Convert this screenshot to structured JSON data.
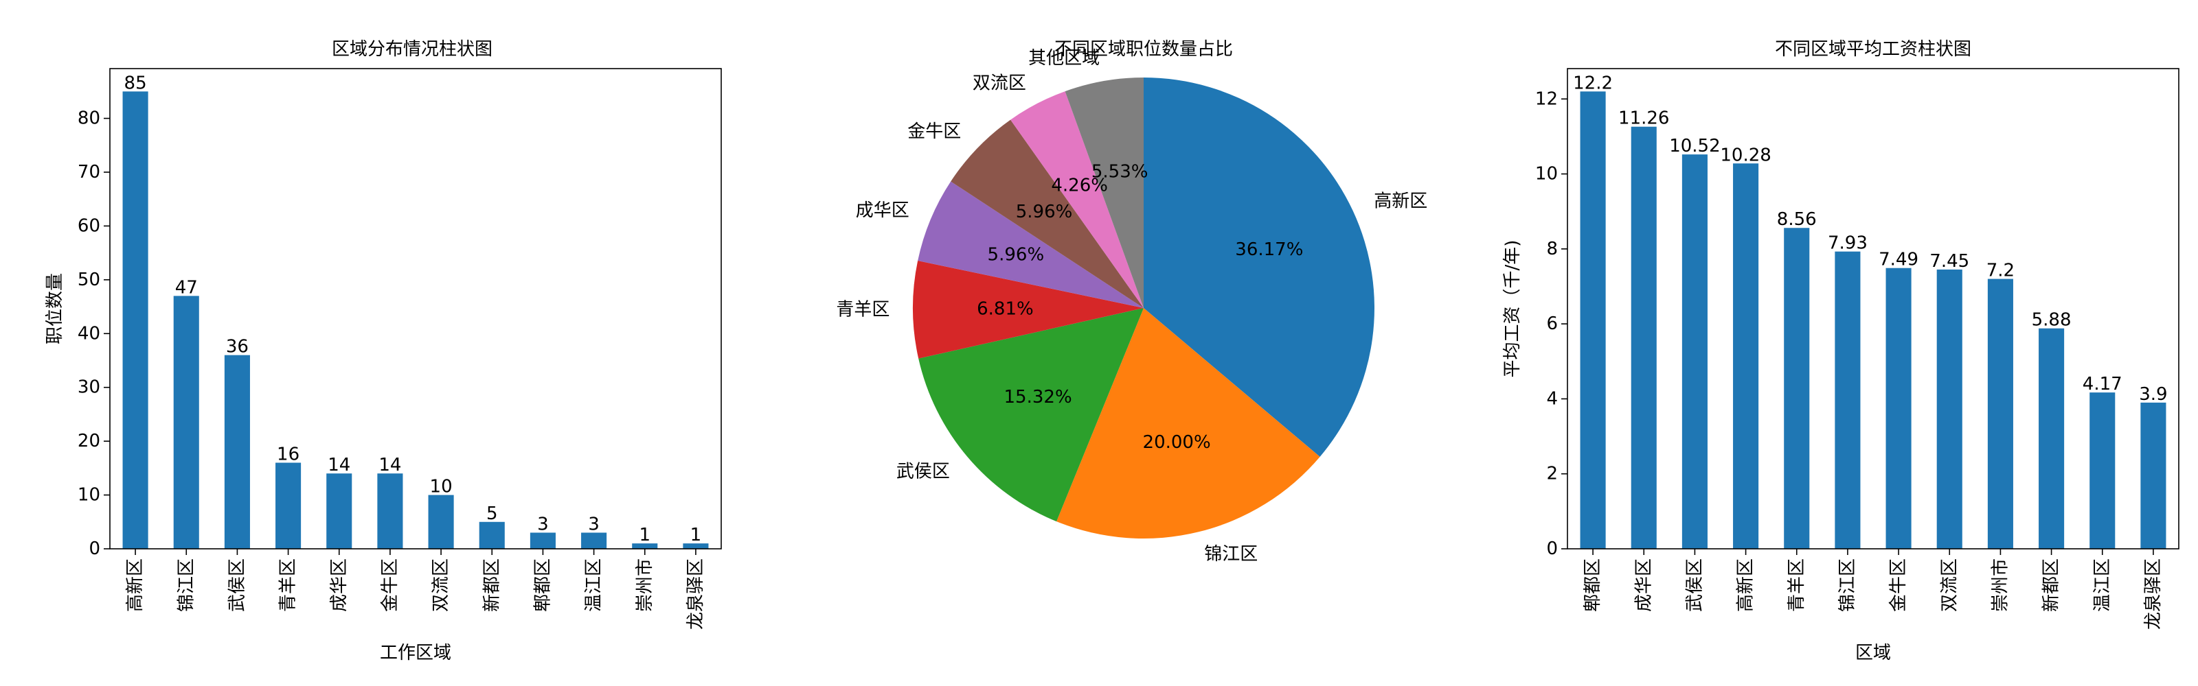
{
  "chart_data": [
    {
      "type": "bar",
      "title": "区域分布情况柱状图",
      "xlabel": "工作区域",
      "ylabel": "职位数量",
      "categories": [
        "高新区",
        "锦江区",
        "武侯区",
        "青羊区",
        "成华区",
        "金牛区",
        "双流区",
        "新都区",
        "郫都区",
        "温江区",
        "崇州市",
        "龙泉驿区"
      ],
      "values": [
        85,
        47,
        36,
        16,
        14,
        14,
        10,
        5,
        3,
        3,
        1,
        1
      ],
      "value_labels": [
        "85",
        "47",
        "36",
        "16",
        "14",
        "14",
        "10",
        "5",
        "3",
        "3",
        "1",
        "1"
      ],
      "ylim": [
        0,
        89.25
      ],
      "yticks": [
        0,
        10,
        20,
        30,
        40,
        50,
        60,
        70,
        80
      ],
      "color": "#1f77b4",
      "grid": false
    },
    {
      "type": "pie",
      "title": "不同区域职位数量占比",
      "labels": [
        "高新区",
        "锦江区",
        "武侯区",
        "青羊区",
        "成华区",
        "金牛区",
        "双流区",
        "其他区域"
      ],
      "values": [
        36.17,
        20.0,
        15.32,
        6.81,
        5.96,
        5.96,
        4.26,
        5.53
      ],
      "pct_labels": [
        "36.17%",
        "20.00%",
        "15.32%",
        "6.81%",
        "5.96%",
        "5.96%",
        "4.26%",
        "5.53%"
      ],
      "colors": [
        "#1f77b4",
        "#ff7f0e",
        "#2ca02c",
        "#d62728",
        "#9467bd",
        "#8c564b",
        "#e377c2",
        "#7f7f7f"
      ],
      "startangle": 90,
      "direction": "clockwise"
    },
    {
      "type": "bar",
      "title": "不同区域平均工资柱状图",
      "xlabel": "区域",
      "ylabel": "平均工资（千/年)",
      "categories": [
        "郫都区",
        "成华区",
        "武侯区",
        "高新区",
        "青羊区",
        "锦江区",
        "金牛区",
        "双流区",
        "崇州市",
        "新都区",
        "温江区",
        "龙泉驿区"
      ],
      "values": [
        12.2,
        11.26,
        10.52,
        10.28,
        8.56,
        7.93,
        7.49,
        7.45,
        7.2,
        5.88,
        4.17,
        3.9
      ],
      "value_labels": [
        "12.2",
        "11.26",
        "10.52",
        "10.28",
        "8.56",
        "7.93",
        "7.49",
        "7.45",
        "7.2",
        "5.88",
        "4.17",
        "3.9"
      ],
      "ylim": [
        0,
        12.81
      ],
      "yticks": [
        0,
        2,
        4,
        6,
        8,
        10,
        12
      ],
      "color": "#1f77b4",
      "grid": false
    }
  ]
}
